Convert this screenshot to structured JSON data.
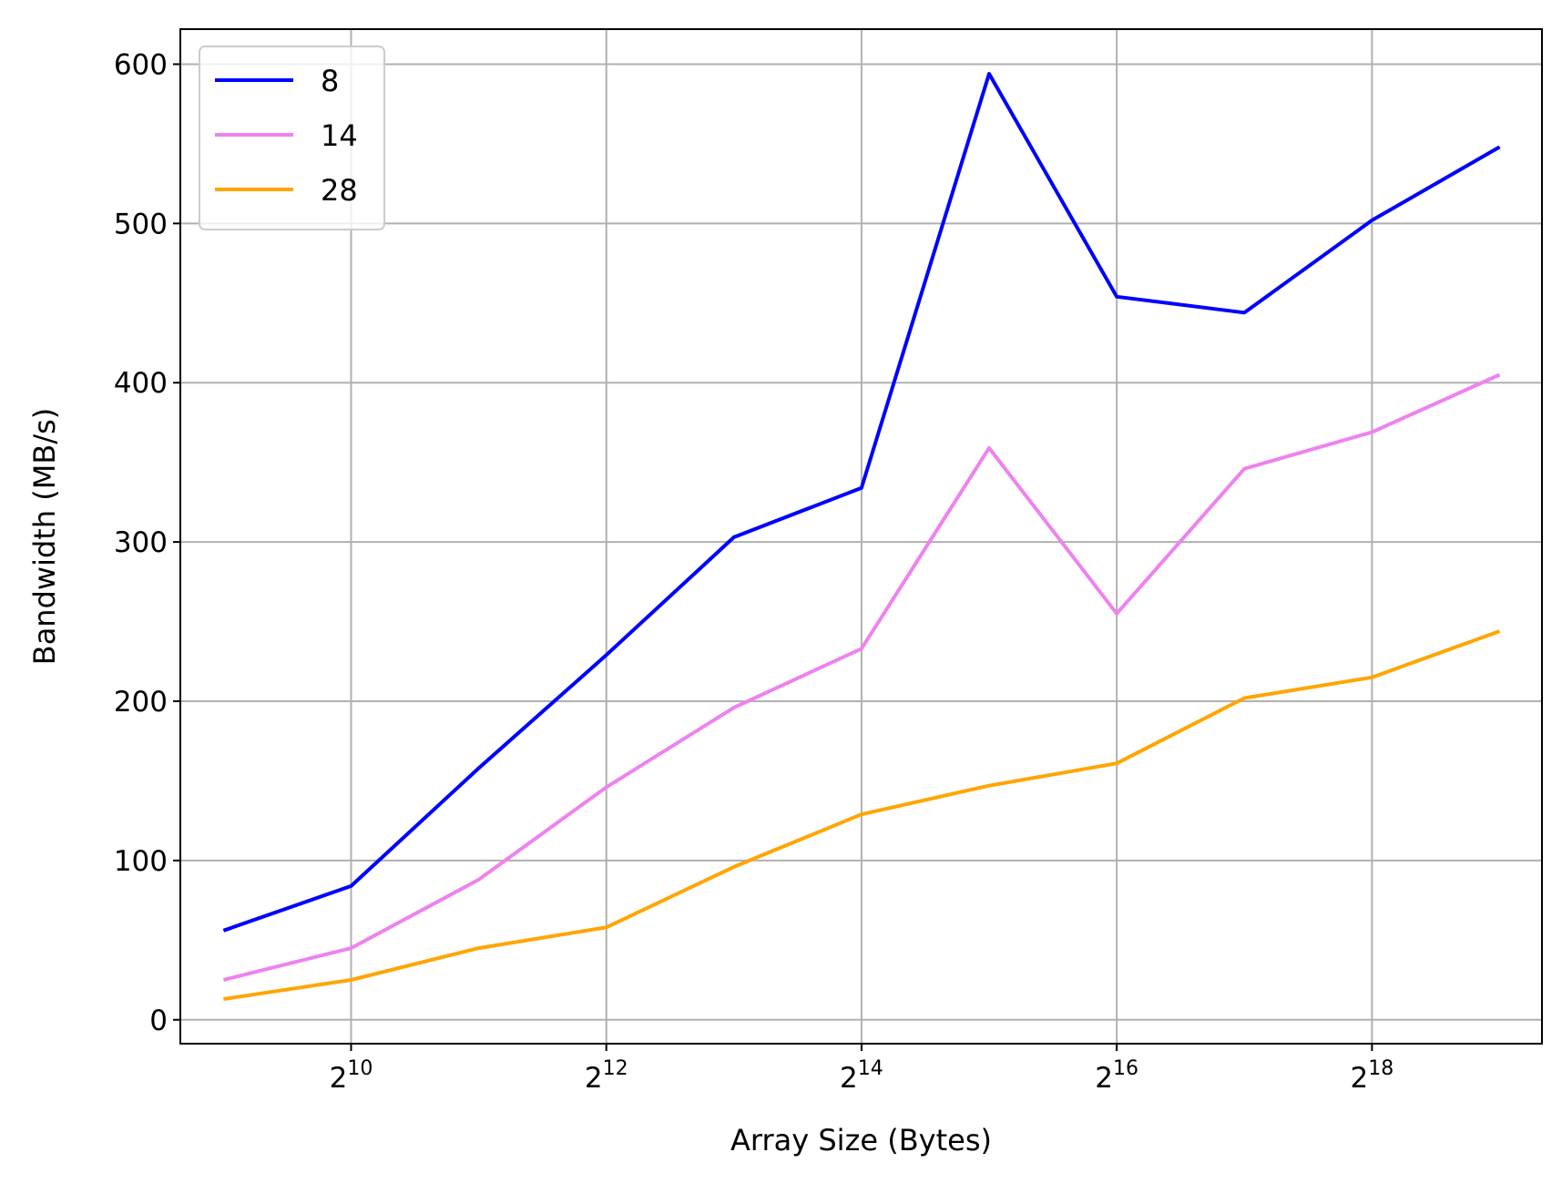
{
  "chart_data": {
    "type": "line",
    "xlabel": "Array Size (Bytes)",
    "ylabel": "Bandwidth (MB/s)",
    "x_scale": "log2",
    "x": [
      512,
      1024,
      2048,
      4096,
      8192,
      16384,
      32768,
      65536,
      131072,
      262144,
      524288
    ],
    "xlim": [
      405,
      660000
    ],
    "ylim": [
      -15,
      622
    ],
    "x_ticks": [
      {
        "value": 1024,
        "base": "2",
        "exp": "10"
      },
      {
        "value": 4096,
        "base": "2",
        "exp": "12"
      },
      {
        "value": 16384,
        "base": "2",
        "exp": "14"
      },
      {
        "value": 65536,
        "base": "2",
        "exp": "16"
      },
      {
        "value": 262144,
        "base": "2",
        "exp": "18"
      }
    ],
    "y_ticks": [
      {
        "value": 0,
        "label": "0"
      },
      {
        "value": 100,
        "label": "100"
      },
      {
        "value": 200,
        "label": "200"
      },
      {
        "value": 300,
        "label": "300"
      },
      {
        "value": 400,
        "label": "400"
      },
      {
        "value": 500,
        "label": "500"
      },
      {
        "value": 600,
        "label": "600"
      }
    ],
    "grid": true,
    "legend": "top-left",
    "series": [
      {
        "name": "8",
        "color": "#0000ff",
        "values": [
          56,
          84,
          158,
          229,
          303,
          334,
          594,
          454,
          444,
          502,
          548
        ]
      },
      {
        "name": "14",
        "color": "#ee82ee",
        "values": [
          25,
          45,
          88,
          146,
          196,
          233,
          359,
          255,
          346,
          369,
          405
        ]
      },
      {
        "name": "28",
        "color": "#ffa500",
        "values": [
          13,
          25,
          45,
          58,
          96,
          129,
          147,
          161,
          202,
          215,
          244
        ]
      }
    ]
  }
}
